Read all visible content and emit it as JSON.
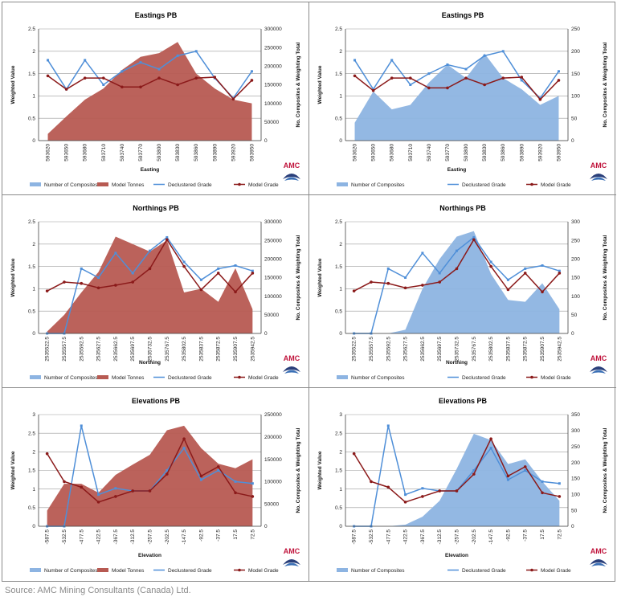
{
  "source": "Source: AMC Mining Consultants (Canada) Ltd.",
  "logo_text": "AMC",
  "colors": {
    "tonnes": "#b75a52",
    "composites": "#8db4e2",
    "declustered": "#4f8fd8",
    "model": "#8b1a1a"
  },
  "chart_data": [
    {
      "type": "area+line",
      "title": "Eastings PB",
      "xlabel": "Easting",
      "ylabel": "Weighted Value",
      "y2label": "No. Composites & Weighting Total",
      "categories": [
        "593620",
        "593650",
        "593680",
        "593710",
        "593740",
        "593770",
        "593800",
        "593830",
        "593860",
        "593890",
        "593920",
        "593950"
      ],
      "ylim": [
        0,
        2.5
      ],
      "yticks": [
        "0",
        "0.5",
        "1",
        "1.5",
        "2",
        "2.5"
      ],
      "y2lim": [
        0,
        300000
      ],
      "y2ticks": [
        "0",
        "50000",
        "100000",
        "150000",
        "200000",
        "250000",
        "300000"
      ],
      "area": {
        "name": "Model Tonnes",
        "values": [
          18000,
          65000,
          110000,
          140000,
          190000,
          225000,
          235000,
          265000,
          180000,
          140000,
          110000,
          100000
        ]
      },
      "lines": [
        {
          "name": "Declustered Grade",
          "values": [
            1.8,
            1.15,
            1.8,
            1.25,
            1.55,
            1.75,
            1.6,
            1.9,
            2.0,
            1.4,
            0.95,
            1.55
          ]
        },
        {
          "name": "Model Grade",
          "values": [
            1.45,
            1.15,
            1.4,
            1.4,
            1.2,
            1.2,
            1.4,
            1.25,
            1.4,
            1.42,
            0.93,
            1.35
          ]
        }
      ],
      "legend": [
        "Number of Composites",
        "Model Tonnes",
        "Declustered Grade",
        "Model Grade"
      ]
    },
    {
      "type": "area+line",
      "title": "Eastings PB",
      "xlabel": "Easting",
      "ylabel": "Weighted Value",
      "y2label": "No. Composites & Weighting Total",
      "categories": [
        "593620",
        "593650",
        "593680",
        "593710",
        "593740",
        "593770",
        "593800",
        "593830",
        "593860",
        "593890",
        "593920",
        "593950"
      ],
      "ylim": [
        0,
        2.5
      ],
      "yticks": [
        "0",
        "0.5",
        "1",
        "1.5",
        "2",
        "2.5"
      ],
      "y2lim": [
        0,
        250
      ],
      "y2ticks": [
        "0",
        "50",
        "100",
        "150",
        "200",
        "250"
      ],
      "area": {
        "name": "Number of Composites",
        "values": [
          40,
          110,
          70,
          80,
          130,
          170,
          140,
          195,
          140,
          115,
          80,
          100
        ]
      },
      "lines": [
        {
          "name": "Declustered Grade",
          "values": [
            1.8,
            1.15,
            1.8,
            1.25,
            1.5,
            1.7,
            1.6,
            1.9,
            2.0,
            1.35,
            0.95,
            1.55
          ]
        },
        {
          "name": "Model Grade",
          "values": [
            1.45,
            1.12,
            1.4,
            1.4,
            1.18,
            1.18,
            1.4,
            1.25,
            1.4,
            1.42,
            0.92,
            1.35
          ]
        }
      ],
      "legend": [
        "Number of Composites",
        "Declustered Grade",
        "Model Grade"
      ]
    },
    {
      "type": "area+line",
      "title": "Northings PB",
      "xlabel": "Northing",
      "ylabel": "Weighted Value",
      "y2label": "No. Composites & Weighting Total",
      "categories": [
        "2535522.5",
        "2535557.5",
        "2535592.5",
        "2535627.5",
        "2535662.5",
        "2535697.5",
        "2535732.5",
        "2535767.5",
        "2535802.5",
        "2535837.5",
        "2535872.5",
        "2535907.5",
        "2535942.5"
      ],
      "ylim": [
        0,
        2.5
      ],
      "yticks": [
        "0",
        "0.5",
        "1",
        "1.5",
        "2",
        "2.5"
      ],
      "y2lim": [
        0,
        300000
      ],
      "y2ticks": [
        "0",
        "50000",
        "100000",
        "150000",
        "200000",
        "250000",
        "300000"
      ],
      "area": {
        "name": "Model Tonnes",
        "values": [
          5000,
          50000,
          110000,
          165000,
          260000,
          240000,
          220000,
          250000,
          110000,
          120000,
          85000,
          175000,
          65000
        ]
      },
      "lines": [
        {
          "name": "Declustered Grade",
          "values": [
            0.0,
            0.0,
            1.45,
            1.25,
            1.8,
            1.35,
            1.85,
            2.15,
            1.6,
            1.2,
            1.45,
            1.52,
            1.4
          ]
        },
        {
          "name": "Model Grade",
          "values": [
            0.95,
            1.15,
            1.12,
            1.02,
            1.08,
            1.15,
            1.45,
            2.1,
            1.5,
            0.98,
            1.35,
            0.93,
            1.35
          ]
        }
      ],
      "legend": [
        "Number of Composites",
        "Model Tonnes",
        "Declustered Grade",
        "Model Grade"
      ]
    },
    {
      "type": "area+line",
      "title": "Northings PB",
      "xlabel": "Northing",
      "ylabel": "Weighted Value",
      "y2label": "No. Composites & Weighting Total",
      "categories": [
        "2535522.5",
        "2535557.5",
        "2535592.5",
        "2535627.5",
        "2535662.5",
        "2535697.5",
        "2535732.5",
        "2535767.5",
        "2535802.5",
        "2535837.5",
        "2535872.5",
        "2535907.5",
        "2535942.5"
      ],
      "ylim": [
        0,
        2.5
      ],
      "yticks": [
        "0",
        "0.5",
        "1",
        "1.5",
        "2",
        "2.5"
      ],
      "y2lim": [
        0,
        300
      ],
      "y2ticks": [
        "0",
        "50",
        "100",
        "150",
        "200",
        "250",
        "300"
      ],
      "area": {
        "name": "Number of Composites",
        "values": [
          0,
          0,
          0,
          10,
          120,
          200,
          260,
          275,
          160,
          90,
          85,
          135,
          65
        ]
      },
      "lines": [
        {
          "name": "Declustered Grade",
          "values": [
            0.0,
            0.0,
            1.45,
            1.25,
            1.8,
            1.35,
            1.85,
            2.15,
            1.6,
            1.2,
            1.45,
            1.52,
            1.4
          ]
        },
        {
          "name": "Model Grade",
          "values": [
            0.95,
            1.15,
            1.12,
            1.02,
            1.08,
            1.15,
            1.45,
            2.1,
            1.5,
            0.98,
            1.35,
            0.93,
            1.35
          ]
        }
      ],
      "legend": [
        "Number of Composites",
        "Declustered Grade",
        "Model Grade"
      ]
    },
    {
      "type": "area+line",
      "title": "Elevations PB",
      "xlabel": "Elevation",
      "ylabel": "Weighted Value",
      "y2label": "No. Composites & Weighting Total",
      "categories": [
        "-587.5",
        "-532.5",
        "-477.5",
        "-422.5",
        "-367.5",
        "-312.5",
        "-257.5",
        "-202.5",
        "-147.5",
        "-92.5",
        "-37.5",
        "17.5",
        "72.5"
      ],
      "ylim": [
        0,
        3
      ],
      "yticks": [
        "0",
        "0.5",
        "1",
        "1.5",
        "2",
        "2.5",
        "3"
      ],
      "y2lim": [
        0,
        250000
      ],
      "y2ticks": [
        "0",
        "50000",
        "100000",
        "150000",
        "200000",
        "250000"
      ],
      "area": {
        "name": "Model Tonnes",
        "values": [
          35000,
          95000,
          95000,
          75000,
          115000,
          138000,
          160000,
          215000,
          225000,
          175000,
          140000,
          130000,
          150000
        ]
      },
      "lines": [
        {
          "name": "Declustered Grade",
          "values": [
            0.0,
            0.0,
            2.7,
            0.85,
            1.02,
            0.95,
            0.95,
            1.5,
            2.1,
            1.25,
            1.5,
            1.2,
            1.15
          ]
        },
        {
          "name": "Model Grade",
          "values": [
            1.95,
            1.2,
            1.05,
            0.65,
            0.8,
            0.95,
            0.95,
            1.4,
            2.35,
            1.35,
            1.6,
            0.9,
            0.8
          ]
        }
      ],
      "legend": [
        "Number of Composites",
        "Model Tonnes",
        "Declustered Grade",
        "Model Grade"
      ]
    },
    {
      "type": "area+line",
      "title": "Elevations PB",
      "xlabel": "Elevation",
      "ylabel": "Weighted Value",
      "y2label": "No. Composites & Weighting Total",
      "categories": [
        "-587.5",
        "-532.5",
        "-477.5",
        "-422.5",
        "-367.5",
        "-312.5",
        "-257.5",
        "-202.5",
        "-147.5",
        "-92.5",
        "-37.5",
        "17.5",
        "72.5"
      ],
      "ylim": [
        0,
        3
      ],
      "yticks": [
        "0",
        "0.5",
        "1",
        "1.5",
        "2",
        "2.5",
        "3"
      ],
      "y2lim": [
        0,
        350
      ],
      "y2ticks": [
        "0",
        "50",
        "100",
        "150",
        "200",
        "250",
        "300",
        "350"
      ],
      "area": {
        "name": "Number of Composites",
        "values": [
          0,
          0,
          0,
          5,
          30,
          80,
          180,
          290,
          270,
          195,
          210,
          140,
          80
        ]
      },
      "lines": [
        {
          "name": "Declustered Grade",
          "values": [
            0.0,
            0.0,
            2.7,
            0.85,
            1.02,
            0.95,
            0.95,
            1.5,
            2.1,
            1.25,
            1.5,
            1.2,
            1.15
          ]
        },
        {
          "name": "Model Grade",
          "values": [
            1.95,
            1.2,
            1.05,
            0.65,
            0.8,
            0.95,
            0.95,
            1.4,
            2.35,
            1.35,
            1.6,
            0.9,
            0.8
          ]
        }
      ],
      "legend": [
        "Number of Composites",
        "Declustered Grade",
        "Model Grade"
      ]
    }
  ]
}
